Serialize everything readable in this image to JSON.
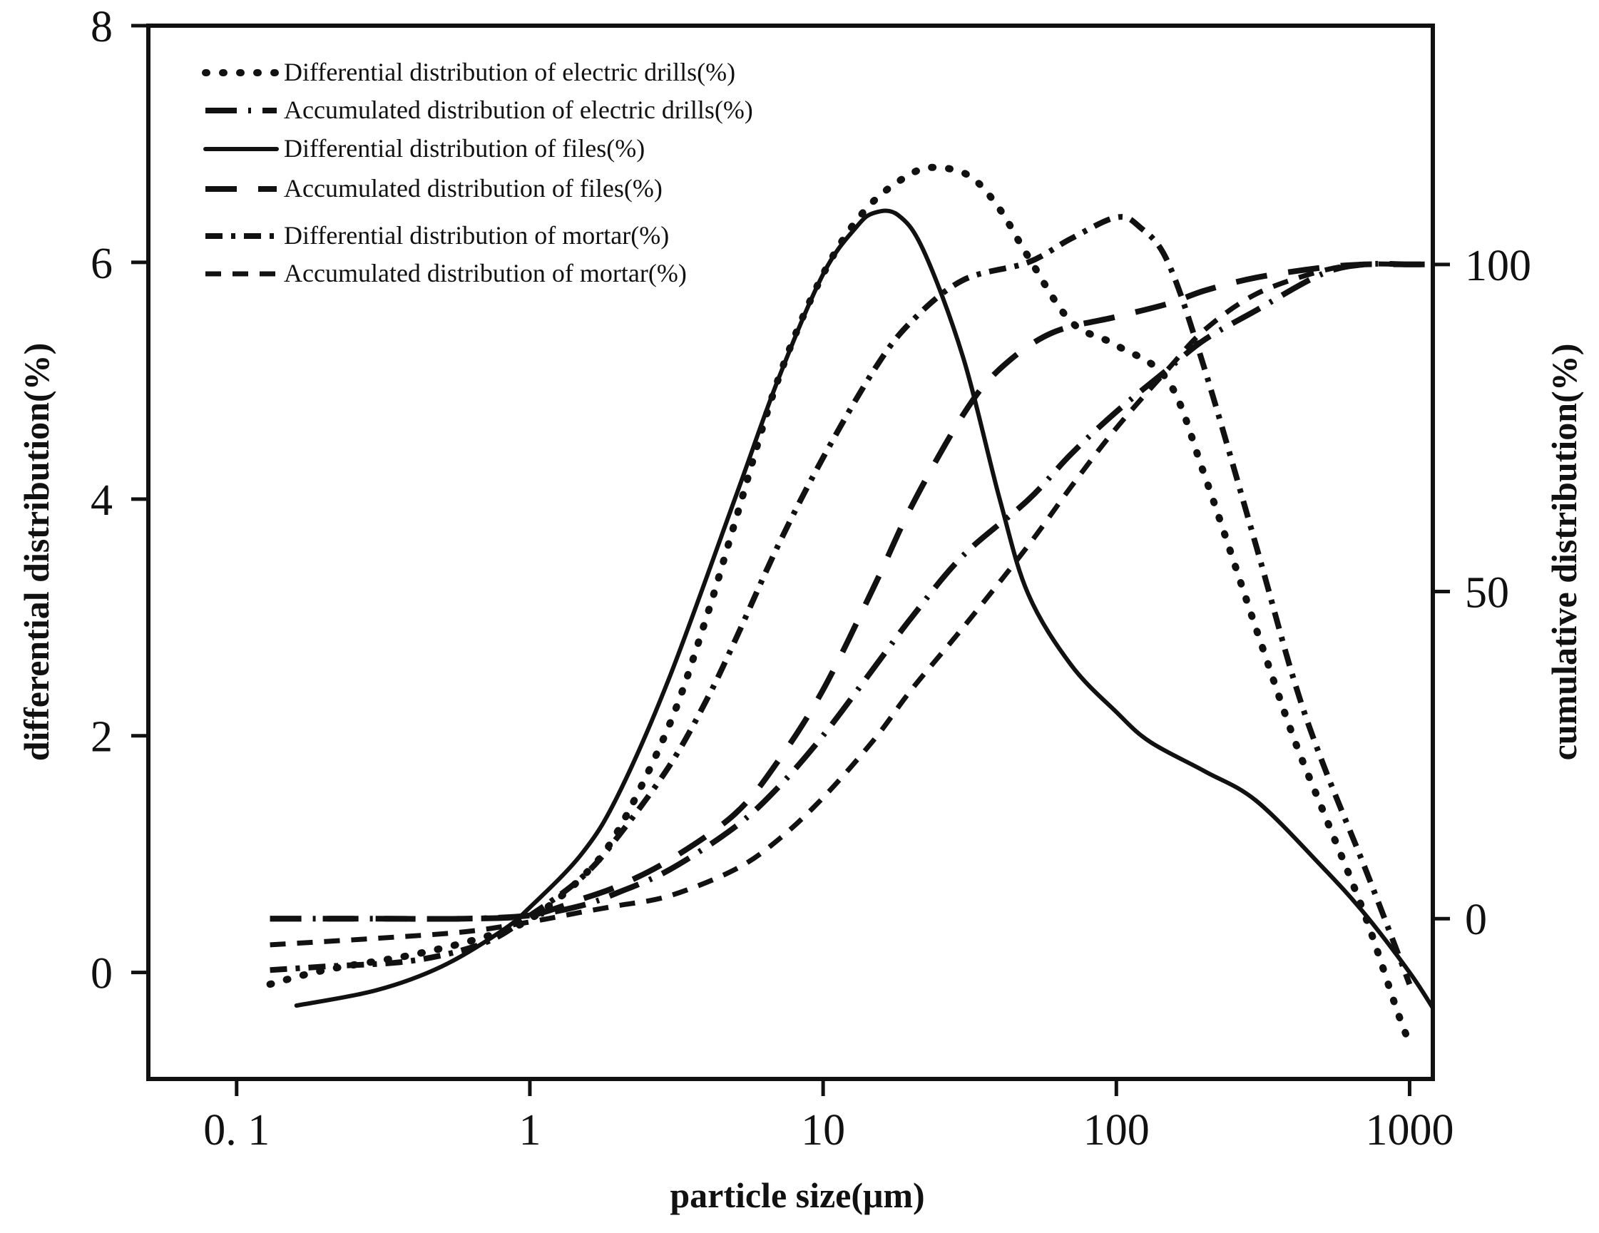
{
  "chart_data": {
    "type": "line",
    "title": "",
    "xlabel": "particle size(μm)",
    "ylabel_left": "differential distribution(%)",
    "ylabel_right": "cumulative distribution(%)",
    "x_scale": "log",
    "xlim": [
      0.05,
      1200
    ],
    "ylim_left": [
      -0.9,
      8
    ],
    "ylim_right": [
      -24.5,
      136.5
    ],
    "x_ticks": [
      0.1,
      1,
      10,
      100,
      1000
    ],
    "x_tick_labels": [
      "0. 1",
      "1",
      "10",
      "100",
      "1000"
    ],
    "y_left_ticks": [
      0,
      2,
      4,
      6,
      8
    ],
    "y_left_tick_labels": [
      "0",
      "2",
      "4",
      "6",
      "8"
    ],
    "y_right_ticks": [
      0,
      50,
      100
    ],
    "y_right_tick_labels": [
      "0",
      "50",
      "100"
    ],
    "grid": false,
    "legend_position": "top-left",
    "series": [
      {
        "name": "Differential distribution of electric drills(%)",
        "axis": "left",
        "style": "dotted",
        "x": [
          0.13,
          0.2,
          0.4,
          0.7,
          1,
          1.5,
          2,
          3,
          4,
          5,
          7,
          10,
          14,
          20,
          25,
          32,
          40,
          50,
          70,
          100,
          150,
          200,
          300,
          400,
          500,
          700,
          900,
          1000
        ],
        "y": [
          -0.1,
          0.02,
          0.15,
          0.3,
          0.45,
          0.8,
          1.2,
          2.1,
          3.0,
          3.8,
          5.0,
          5.9,
          6.45,
          6.75,
          6.8,
          6.72,
          6.45,
          6.05,
          5.5,
          5.3,
          5.0,
          4.2,
          2.9,
          2.0,
          1.4,
          0.5,
          -0.3,
          -0.6
        ]
      },
      {
        "name": "Accumulated distribution of electric drills(%)",
        "axis": "right",
        "style": "long-dash-dot",
        "x": [
          0.13,
          0.3,
          0.6,
          1,
          1.5,
          2,
          3,
          5,
          7,
          10,
          15,
          20,
          30,
          50,
          70,
          100,
          150,
          200,
          300,
          500,
          700,
          1000,
          1200
        ],
        "y": [
          0,
          0,
          0,
          0.5,
          2,
          4,
          7.5,
          14,
          20,
          28,
          38.5,
          46,
          55.5,
          64,
          71,
          77.5,
          84,
          88.5,
          93,
          98.5,
          100,
          100,
          100
        ]
      },
      {
        "name": "Differential distribution of files(%)",
        "axis": "left",
        "style": "solid",
        "x": [
          0.16,
          0.3,
          0.5,
          0.8,
          1,
          1.5,
          2,
          3,
          5,
          7,
          10,
          13,
          15,
          18,
          22,
          30,
          40,
          50,
          70,
          100,
          130,
          200,
          300,
          500,
          700,
          1000,
          1200
        ],
        "y": [
          -0.28,
          -0.15,
          0.05,
          0.35,
          0.55,
          1.0,
          1.5,
          2.5,
          4.0,
          5.0,
          5.9,
          6.3,
          6.42,
          6.4,
          6.1,
          5.2,
          4.0,
          3.2,
          2.6,
          2.2,
          1.95,
          1.7,
          1.45,
          0.9,
          0.5,
          0.0,
          -0.3
        ]
      },
      {
        "name": "Accumulated distribution of files(%)",
        "axis": "right",
        "style": "long-dash",
        "x": [
          0.13,
          0.3,
          0.6,
          1,
          1.5,
          2,
          3,
          5,
          7,
          10,
          15,
          20,
          30,
          40,
          60,
          100,
          150,
          200,
          300,
          500,
          700,
          1000,
          1200
        ],
        "y": [
          0,
          0,
          0,
          0.5,
          3,
          5,
          9,
          16,
          24,
          35,
          51,
          63,
          77,
          84,
          89.5,
          92,
          94,
          96,
          98,
          99.5,
          100,
          100,
          100
        ]
      },
      {
        "name": "Differential distribution of mortar(%)",
        "axis": "left",
        "style": "dash-dot",
        "x": [
          0.13,
          0.2,
          0.4,
          0.7,
          1,
          1.5,
          2,
          3,
          4,
          5,
          7,
          10,
          15,
          20,
          30,
          50,
          70,
          100,
          120,
          150,
          200,
          300,
          400,
          500,
          700,
          900,
          1000
        ],
        "y": [
          0.02,
          0.05,
          0.1,
          0.25,
          0.48,
          0.8,
          1.15,
          1.75,
          2.3,
          2.8,
          3.6,
          4.35,
          5.1,
          5.5,
          5.85,
          6.0,
          6.2,
          6.38,
          6.3,
          6.0,
          5.1,
          3.6,
          2.5,
          1.8,
          0.9,
          0.2,
          -0.1
        ]
      },
      {
        "name": "Accumulated distribution of mortar(%)",
        "axis": "right",
        "style": "short-dash",
        "x": [
          0.13,
          0.3,
          0.6,
          1,
          1.5,
          2,
          3,
          5,
          7,
          10,
          15,
          20,
          30,
          50,
          70,
          100,
          150,
          200,
          300,
          500,
          700,
          1000,
          1200
        ],
        "y": [
          -4,
          -3,
          -2,
          -0.5,
          1,
          2,
          3.5,
          7.5,
          12,
          18.5,
          27.5,
          35,
          44.5,
          57,
          66,
          75,
          84,
          90,
          95.5,
          99,
          100,
          100,
          100
        ]
      }
    ]
  }
}
